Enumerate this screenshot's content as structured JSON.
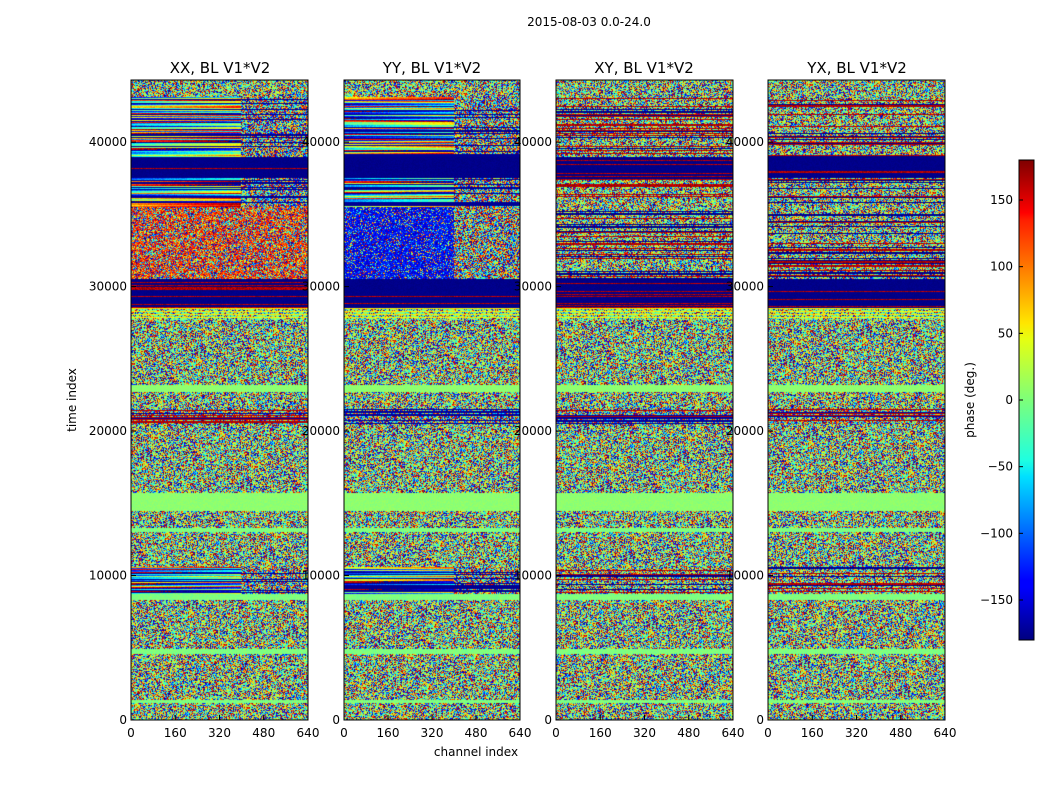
{
  "chart_data": {
    "type": "heatmap",
    "suptitle": "2015-08-03 0.0-24.0",
    "xlabel": "channel index",
    "ylabel": "time index",
    "xlim": [
      0,
      640
    ],
    "ylim": [
      0,
      44300
    ],
    "x_ticks": [
      0,
      160,
      320,
      480,
      640
    ],
    "x_tick_labels": [
      "0",
      "160",
      "320",
      "480",
      "640"
    ],
    "y_ticks": [
      0,
      10000,
      20000,
      30000,
      40000
    ],
    "y_tick_labels": [
      "0",
      "10000",
      "20000",
      "30000",
      "40000"
    ],
    "panels": [
      {
        "title": "XX, BL V1*V2",
        "polarization": "XX"
      },
      {
        "title": "YY, BL V1*V2",
        "polarization": "YY"
      },
      {
        "title": "XY, BL V1*V2",
        "polarization": "XY"
      },
      {
        "title": "YX, BL V1*V2",
        "polarization": "YX"
      }
    ],
    "colorbar": {
      "label": "phase (deg.)",
      "colormap": "jet",
      "range": [
        -180,
        180
      ],
      "ticks": [
        150,
        100,
        50,
        0,
        -50,
        -100,
        -150
      ],
      "tick_labels": [
        "150",
        "100",
        "50",
        "0",
        "−50",
        "−100",
        "−150"
      ]
    },
    "grid": false,
    "legend": "none",
    "bands": [
      {
        "y": [
          0,
          1200
        ],
        "kind": "noise"
      },
      {
        "y": [
          1200,
          1400
        ],
        "kind": "stripe"
      },
      {
        "y": [
          1400,
          4600
        ],
        "kind": "noise"
      },
      {
        "y": [
          4600,
          4900
        ],
        "kind": "stripe"
      },
      {
        "y": [
          4900,
          8300
        ],
        "kind": "noise"
      },
      {
        "y": [
          8300,
          8700
        ],
        "kind": "stripe"
      },
      {
        "y": [
          8700,
          10600
        ],
        "kind": "fringe"
      },
      {
        "y": [
          10600,
          13000
        ],
        "kind": "noise"
      },
      {
        "y": [
          13000,
          13300
        ],
        "kind": "stripe"
      },
      {
        "y": [
          13300,
          14500
        ],
        "kind": "noise"
      },
      {
        "y": [
          14500,
          15700
        ],
        "kind": "flag"
      },
      {
        "y": [
          15700,
          20500
        ],
        "kind": "noise"
      },
      {
        "y": [
          20500,
          21500
        ],
        "kind": "stripes_dark"
      },
      {
        "y": [
          21500,
          22700
        ],
        "kind": "noise"
      },
      {
        "y": [
          22700,
          23200
        ],
        "kind": "flag"
      },
      {
        "y": [
          23200,
          27700
        ],
        "kind": "noise"
      },
      {
        "y": [
          27700,
          28500
        ],
        "kind": "edge"
      },
      {
        "y": [
          28500,
          30500
        ],
        "kind": "dark"
      },
      {
        "y": [
          30500,
          35500
        ],
        "kind": "phase"
      },
      {
        "y": [
          35500,
          37500
        ],
        "kind": "fringe"
      },
      {
        "y": [
          37500,
          39000
        ],
        "kind": "dark"
      },
      {
        "y": [
          39000,
          43100
        ],
        "kind": "fringe"
      },
      {
        "y": [
          43100,
          44300
        ],
        "kind": "noise"
      }
    ]
  }
}
